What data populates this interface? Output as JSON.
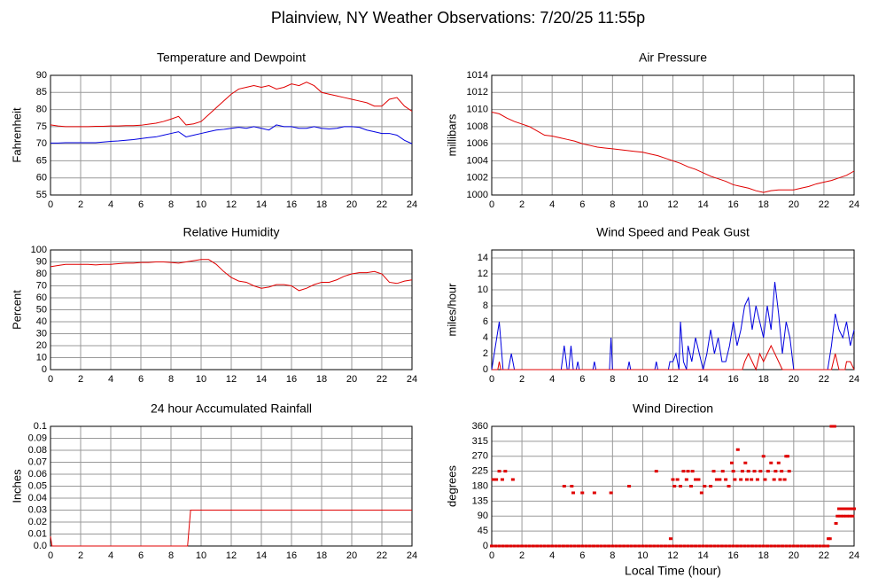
{
  "title": "Plainview, NY Weather Observations: 7/20/25 11:55p",
  "chart_data": [
    {
      "type": "line",
      "title": "Temperature and Dewpoint",
      "ylabel": "Fahrenheit",
      "xlim": [
        0,
        24
      ],
      "xticks": [
        0,
        2,
        4,
        6,
        8,
        10,
        12,
        14,
        16,
        18,
        20,
        22,
        24
      ],
      "ylim": [
        55,
        90
      ],
      "yticks": [
        55,
        60,
        65,
        70,
        75,
        80,
        85,
        90
      ],
      "grid": true,
      "x": [
        0,
        0.5,
        1,
        1.5,
        2,
        2.5,
        3,
        3.5,
        4,
        4.5,
        5,
        5.5,
        6,
        6.5,
        7,
        7.5,
        8,
        8.5,
        9,
        9.5,
        10,
        10.5,
        11,
        11.5,
        12,
        12.5,
        13,
        13.5,
        14,
        14.5,
        15,
        15.5,
        16,
        16.5,
        17,
        17.5,
        18,
        18.5,
        19,
        19.5,
        20,
        20.5,
        21,
        21.5,
        22,
        22.5,
        23,
        23.5,
        24
      ],
      "series": [
        {
          "color": "#e00000",
          "values": [
            75.5,
            75.2,
            75,
            75,
            75,
            75,
            75.1,
            75.1,
            75.2,
            75.2,
            75.3,
            75.3,
            75.4,
            75.7,
            76,
            76.5,
            77.2,
            78,
            75.5,
            75.8,
            76.5,
            78.5,
            80.5,
            82.5,
            84.5,
            86,
            86.5,
            87,
            86.5,
            87,
            86,
            86.5,
            87.5,
            87,
            88,
            87,
            85,
            84.5,
            84,
            83.5,
            83,
            82.5,
            82,
            81,
            81,
            83,
            83.5,
            81,
            79.5
          ]
        },
        {
          "color": "#0000e0",
          "values": [
            70.2,
            70.2,
            70.3,
            70.3,
            70.3,
            70.3,
            70.3,
            70.5,
            70.7,
            70.8,
            71,
            71.2,
            71.5,
            71.8,
            72,
            72.5,
            73,
            73.5,
            72,
            72.5,
            73,
            73.5,
            74,
            74.2,
            74.5,
            74.8,
            74.5,
            75,
            74.5,
            74,
            75.5,
            75,
            75,
            74.5,
            74.5,
            75,
            74.5,
            74.3,
            74.5,
            75,
            75,
            74.8,
            74,
            73.5,
            73,
            73,
            72.5,
            71,
            70
          ]
        }
      ]
    },
    {
      "type": "line",
      "title": "Air Pressure",
      "ylabel": "millibars",
      "xlim": [
        0,
        24
      ],
      "xticks": [
        0,
        2,
        4,
        6,
        8,
        10,
        12,
        14,
        16,
        18,
        20,
        22,
        24
      ],
      "ylim": [
        1000,
        1014
      ],
      "yticks": [
        1000,
        1002,
        1004,
        1006,
        1008,
        1010,
        1012,
        1014
      ],
      "grid": true,
      "x": [
        0,
        0.5,
        1,
        1.5,
        2,
        2.5,
        3,
        3.5,
        4,
        4.5,
        5,
        5.5,
        6,
        6.5,
        7,
        7.5,
        8,
        8.5,
        9,
        9.5,
        10,
        10.5,
        11,
        11.5,
        12,
        12.5,
        13,
        13.5,
        14,
        14.5,
        15,
        15.5,
        16,
        16.5,
        17,
        17.5,
        18,
        18.5,
        19,
        19.5,
        20,
        20.5,
        21,
        21.5,
        22,
        22.5,
        23,
        23.5,
        24
      ],
      "color": "#e00000",
      "values": [
        1009.7,
        1009.5,
        1009,
        1008.6,
        1008.3,
        1008,
        1007.5,
        1007,
        1006.9,
        1006.7,
        1006.5,
        1006.3,
        1006,
        1005.8,
        1005.6,
        1005.5,
        1005.4,
        1005.3,
        1005.2,
        1005.1,
        1005,
        1004.8,
        1004.6,
        1004.3,
        1004,
        1003.7,
        1003.3,
        1003,
        1002.6,
        1002.2,
        1001.9,
        1001.6,
        1001.2,
        1001,
        1000.8,
        1000.5,
        1000.3,
        1000.5,
        1000.6,
        1000.6,
        1000.6,
        1000.8,
        1001,
        1001.3,
        1001.5,
        1001.7,
        1002,
        1002.3,
        1002.8
      ]
    },
    {
      "type": "line",
      "title": "Relative Humidity",
      "ylabel": "Percent",
      "xlim": [
        0,
        24
      ],
      "xticks": [
        0,
        2,
        4,
        6,
        8,
        10,
        12,
        14,
        16,
        18,
        20,
        22,
        24
      ],
      "ylim": [
        0,
        100
      ],
      "yticks": [
        0,
        10,
        20,
        30,
        40,
        50,
        60,
        70,
        80,
        90,
        100
      ],
      "grid": true,
      "x": [
        0,
        0.5,
        1,
        1.5,
        2,
        2.5,
        3,
        3.5,
        4,
        4.5,
        5,
        5.5,
        6,
        6.5,
        7,
        7.5,
        8,
        8.5,
        9,
        9.5,
        10,
        10.5,
        11,
        11.5,
        12,
        12.5,
        13,
        13.5,
        14,
        14.5,
        15,
        15.5,
        16,
        16.5,
        17,
        17.5,
        18,
        18.5,
        19,
        19.5,
        20,
        20.5,
        21,
        21.5,
        22,
        22.5,
        23,
        23.5,
        24
      ],
      "color": "#e00000",
      "values": [
        86,
        87,
        88,
        88,
        88,
        88,
        87.5,
        88,
        88,
        88.5,
        89,
        89,
        89.5,
        89.5,
        90,
        90,
        89.5,
        89,
        90,
        91,
        92,
        92,
        88,
        82,
        77,
        74,
        73,
        70,
        68,
        69,
        71,
        71,
        70,
        66,
        68,
        71,
        73,
        73,
        75,
        78,
        80,
        81,
        81,
        82,
        80,
        73,
        72,
        74,
        75
      ]
    },
    {
      "type": "line",
      "title": "Wind Speed and Peak Gust",
      "ylabel": "miles/hour",
      "xlim": [
        0,
        24
      ],
      "xticks": [
        0,
        2,
        4,
        6,
        8,
        10,
        12,
        14,
        16,
        18,
        20,
        22,
        24
      ],
      "ylim": [
        0,
        15
      ],
      "yticks": [
        0,
        2,
        4,
        6,
        8,
        10,
        12,
        14
      ],
      "grid": true,
      "series": [
        {
          "color": "#0000e0",
          "x": [
            0,
            0.25,
            0.5,
            0.75,
            1.1,
            1.3,
            1.5,
            4.6,
            4.8,
            5.0,
            5.1,
            5.25,
            5.4,
            5.6,
            5.7,
            5.8,
            6.7,
            6.8,
            6.9,
            7.8,
            7.9,
            8.0,
            9.0,
            9.1,
            9.2,
            10.8,
            10.9,
            11.0,
            11.7,
            11.8,
            12.0,
            12.2,
            12.4,
            12.5,
            12.7,
            12.9,
            13.0,
            13.25,
            13.5,
            13.75,
            14.0,
            14.25,
            14.5,
            14.75,
            15.0,
            15.25,
            15.5,
            15.75,
            16.0,
            16.25,
            16.5,
            16.75,
            17.0,
            17.25,
            17.5,
            17.75,
            18.0,
            18.25,
            18.5,
            18.75,
            19.0,
            19.25,
            19.5,
            19.75,
            20.0,
            22.25,
            22.5,
            22.75,
            23.0,
            23.25,
            23.5,
            23.75,
            24.0
          ],
          "values": [
            0,
            3,
            6,
            0,
            0,
            2,
            0,
            0,
            3,
            0,
            0,
            3,
            0,
            0,
            1,
            0,
            0,
            1,
            0,
            0,
            4,
            0,
            0,
            1,
            0,
            0,
            1,
            0,
            0,
            1,
            1,
            2,
            0,
            6,
            1,
            0,
            3,
            1,
            4,
            2,
            0,
            2,
            5,
            2,
            4,
            1,
            1,
            3,
            6,
            3,
            5,
            8,
            9,
            5,
            8,
            6,
            4,
            8,
            5,
            11,
            7,
            2,
            6,
            4,
            0,
            0,
            3,
            7,
            5,
            4,
            6,
            3,
            5
          ]
        },
        {
          "color": "#e00000",
          "x": [
            0,
            0.4,
            0.5,
            0.6,
            16.6,
            16.75,
            17.0,
            17.25,
            17.5,
            17.75,
            18.0,
            18.25,
            18.5,
            18.75,
            19.0,
            19.25,
            22.5,
            22.75,
            23.0,
            23.4,
            23.5,
            23.75,
            24.0
          ],
          "values": [
            0,
            0,
            1,
            0,
            0,
            1,
            2,
            1,
            0,
            2,
            1,
            2,
            3,
            2,
            1,
            0,
            0,
            2,
            0,
            0,
            1,
            1,
            0
          ]
        }
      ]
    },
    {
      "type": "line",
      "title": "24 hour Accumulated Rainfall",
      "ylabel": "Inches",
      "xlim": [
        0,
        24
      ],
      "xticks": [
        0,
        2,
        4,
        6,
        8,
        10,
        12,
        14,
        16,
        18,
        20,
        22,
        24
      ],
      "ylim": [
        0,
        0.1
      ],
      "yticks": [
        {
          "value": 0,
          "label": "0.0"
        },
        0.01,
        0.02,
        0.03,
        0.04,
        0.05,
        0.06,
        0.07,
        0.08,
        0.09,
        0.1
      ],
      "grid": true,
      "x": [
        0,
        0.1,
        9.1,
        9.3,
        24
      ],
      "color": "#e00000",
      "values": [
        0.008,
        0,
        0,
        0.03,
        0.03
      ]
    },
    {
      "type": "scatter",
      "title": "Wind Direction",
      "ylabel": "degrees",
      "xlabel": "Local Time (hour)",
      "xlim": [
        0,
        24
      ],
      "xticks": [
        0,
        2,
        4,
        6,
        8,
        10,
        12,
        14,
        16,
        18,
        20,
        22,
        24
      ],
      "ylim": [
        0,
        360
      ],
      "yticks": [
        0,
        45,
        90,
        135,
        180,
        225,
        270,
        315,
        360
      ],
      "grid": true,
      "color": "#e00000",
      "x": [
        0,
        0.25,
        0.5,
        0.75,
        1,
        1.25,
        1.5,
        1.75,
        2,
        2.25,
        2.5,
        2.75,
        3,
        3.25,
        3.5,
        3.75,
        4,
        4.25,
        4.5,
        4.75,
        5,
        5.25,
        5.5,
        5.75,
        6,
        6.25,
        6.5,
        6.75,
        7,
        7.25,
        7.5,
        7.75,
        8,
        8.25,
        8.5,
        8.75,
        9,
        9.25,
        9.5,
        9.75,
        10,
        10.25,
        10.5,
        10.75,
        11,
        11.25,
        11.5,
        11.75,
        12,
        12.25,
        12.5,
        12.75,
        13,
        13.25,
        13.5,
        13.75,
        14,
        14.25,
        14.5,
        14.75,
        15,
        15.25,
        15.5,
        15.75,
        16,
        16.25,
        16.5,
        16.75,
        17,
        17.25,
        17.5,
        17.75,
        18,
        18.25,
        18.5,
        18.75,
        19,
        19.25,
        19.5,
        19.75,
        20,
        20.25,
        20.5,
        20.75,
        21,
        21.25,
        21.5,
        21.75,
        22,
        22.25,
        0.1,
        0.3,
        0.5,
        0.7,
        0.9,
        1.4,
        4.8,
        5.3,
        5.4,
        6.0,
        6.8,
        7.9,
        9.1,
        10.9,
        11.85,
        12.0,
        12.1,
        12.3,
        12.5,
        12.7,
        12.9,
        13.0,
        13.2,
        13.3,
        13.5,
        13.7,
        13.9,
        14.1,
        14.5,
        14.7,
        14.9,
        15.1,
        15.3,
        15.5,
        15.7,
        15.9,
        16.0,
        16.1,
        16.3,
        16.5,
        16.6,
        16.8,
        16.9,
        17.0,
        17.2,
        17.4,
        17.6,
        17.8,
        18.0,
        18.1,
        18.3,
        18.5,
        18.7,
        18.8,
        19.0,
        19.1,
        19.2,
        19.4,
        19.5,
        19.6,
        19.7,
        22.3,
        22.4,
        22.5,
        22.6,
        22.7,
        22.8,
        22.9,
        23.0,
        23.1,
        23.2,
        23.3,
        23.4,
        23.5,
        23.6,
        23.7,
        23.8,
        23.9,
        24.0
      ],
      "values": [
        0,
        0,
        0,
        0,
        0,
        0,
        0,
        0,
        0,
        0,
        0,
        0,
        0,
        0,
        0,
        0,
        0,
        0,
        0,
        0,
        0,
        0,
        0,
        0,
        0,
        0,
        0,
        0,
        0,
        0,
        0,
        0,
        0,
        0,
        0,
        0,
        0,
        0,
        0,
        0,
        0,
        0,
        0,
        0,
        0,
        0,
        0,
        0,
        0,
        0,
        0,
        0,
        0,
        0,
        0,
        0,
        0,
        0,
        0,
        0,
        0,
        0,
        0,
        0,
        0,
        0,
        0,
        0,
        0,
        0,
        0,
        0,
        0,
        0,
        0,
        0,
        0,
        0,
        0,
        0,
        0,
        0,
        0,
        0,
        0,
        0,
        0,
        0,
        0,
        0,
        200,
        200,
        225,
        200,
        225,
        200,
        180,
        180,
        160,
        160,
        160,
        160,
        180,
        225,
        22,
        200,
        180,
        200,
        180,
        225,
        200,
        225,
        180,
        225,
        200,
        200,
        160,
        180,
        180,
        225,
        200,
        200,
        225,
        200,
        180,
        250,
        225,
        200,
        290,
        200,
        225,
        250,
        200,
        225,
        200,
        225,
        200,
        225,
        270,
        200,
        225,
        250,
        200,
        225,
        250,
        200,
        225,
        200,
        270,
        270,
        225,
        22,
        22,
        360,
        360,
        360,
        68,
        90,
        112,
        90,
        112,
        90,
        112,
        90,
        112,
        90,
        112,
        90,
        112
      ]
    }
  ]
}
